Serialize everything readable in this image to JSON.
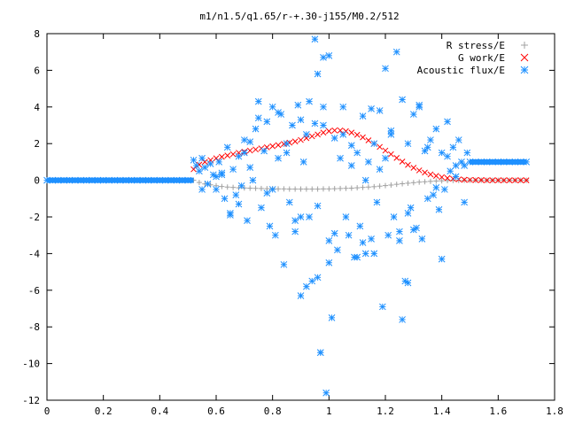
{
  "chart_data": {
    "type": "scatter",
    "title": "m1/n1.5/q1.65/r-+.30-j155/M0.2/512",
    "xlim": [
      0,
      1.8
    ],
    "ylim": [
      -12,
      8
    ],
    "x_ticks": [
      0,
      0.2,
      0.4,
      0.6,
      0.8,
      1,
      1.2,
      1.4,
      1.6,
      1.8
    ],
    "y_ticks": [
      -12,
      -10,
      -8,
      -6,
      -4,
      -2,
      0,
      2,
      4,
      6,
      8
    ],
    "grid": false,
    "legend_position": "top-right",
    "series": [
      {
        "name": "R stress/E",
        "marker": "plus",
        "color": "#a0a0a0",
        "x": [
          0.52,
          0.54,
          0.56,
          0.58,
          0.6,
          0.62,
          0.64,
          0.66,
          0.68,
          0.7,
          0.72,
          0.74,
          0.76,
          0.78,
          0.8,
          0.82,
          0.84,
          0.86,
          0.88,
          0.9,
          0.92,
          0.94,
          0.96,
          0.98,
          1.0,
          1.02,
          1.04,
          1.06,
          1.08,
          1.1,
          1.12,
          1.14,
          1.16,
          1.18,
          1.2,
          1.22,
          1.24,
          1.26,
          1.28,
          1.3,
          1.32,
          1.34,
          1.36,
          1.38,
          1.4,
          1.42,
          1.44,
          1.46,
          1.48,
          1.5,
          1.52,
          1.54,
          1.56,
          1.58,
          1.6,
          1.62,
          1.64,
          1.66,
          1.68,
          1.7
        ],
        "y": [
          0.0,
          -0.12,
          -0.2,
          -0.25,
          -0.3,
          -0.34,
          -0.37,
          -0.39,
          -0.41,
          -0.42,
          -0.43,
          -0.44,
          -0.45,
          -0.46,
          -0.46,
          -0.47,
          -0.47,
          -0.48,
          -0.48,
          -0.48,
          -0.48,
          -0.48,
          -0.48,
          -0.47,
          -0.47,
          -0.46,
          -0.45,
          -0.44,
          -0.43,
          -0.41,
          -0.39,
          -0.37,
          -0.35,
          -0.32,
          -0.29,
          -0.26,
          -0.22,
          -0.19,
          -0.16,
          -0.13,
          -0.1,
          -0.08,
          -0.06,
          -0.04,
          -0.03,
          -0.02,
          -0.01,
          -0.01,
          0.0,
          0.0,
          0.0,
          0.0,
          0.0,
          0.0,
          0.0,
          0.0,
          0.0,
          0.0,
          0.0,
          0.0
        ]
      },
      {
        "name": "G work/E",
        "marker": "cross",
        "color": "#ff0000",
        "x": [
          0.52,
          0.54,
          0.56,
          0.58,
          0.6,
          0.62,
          0.64,
          0.66,
          0.68,
          0.7,
          0.72,
          0.74,
          0.76,
          0.78,
          0.8,
          0.82,
          0.84,
          0.86,
          0.88,
          0.9,
          0.92,
          0.94,
          0.96,
          0.98,
          1.0,
          1.02,
          1.04,
          1.06,
          1.08,
          1.1,
          1.12,
          1.14,
          1.16,
          1.18,
          1.2,
          1.22,
          1.24,
          1.26,
          1.28,
          1.3,
          1.32,
          1.34,
          1.36,
          1.38,
          1.4,
          1.42,
          1.44,
          1.46,
          1.48,
          1.5,
          1.52,
          1.54,
          1.56,
          1.58,
          1.6,
          1.62,
          1.64,
          1.66,
          1.68,
          1.7
        ],
        "y": [
          0.6,
          0.85,
          1.0,
          1.1,
          1.2,
          1.28,
          1.35,
          1.42,
          1.5,
          1.56,
          1.62,
          1.68,
          1.74,
          1.8,
          1.86,
          1.92,
          1.98,
          2.05,
          2.12,
          2.2,
          2.3,
          2.4,
          2.5,
          2.6,
          2.68,
          2.72,
          2.72,
          2.68,
          2.6,
          2.48,
          2.34,
          2.18,
          2.0,
          1.82,
          1.62,
          1.42,
          1.22,
          1.02,
          0.84,
          0.68,
          0.54,
          0.42,
          0.32,
          0.24,
          0.17,
          0.12,
          0.08,
          0.05,
          0.03,
          0.02,
          0.01,
          0.01,
          0.0,
          0.0,
          0.0,
          0.0,
          0.0,
          0.0,
          0.0,
          0.0
        ]
      },
      {
        "name": "Acoustic flux/E",
        "marker": "star",
        "color": "#1e90ff",
        "x": [
          0.0,
          0.02,
          0.04,
          0.06,
          0.08,
          0.1,
          0.12,
          0.14,
          0.16,
          0.18,
          0.2,
          0.22,
          0.24,
          0.26,
          0.28,
          0.3,
          0.32,
          0.34,
          0.36,
          0.38,
          0.4,
          0.42,
          0.44,
          0.46,
          0.48,
          0.5,
          0.52,
          0.53,
          0.54,
          0.55,
          0.56,
          0.57,
          0.58,
          0.59,
          0.6,
          0.61,
          0.62,
          0.63,
          0.64,
          0.65,
          0.66,
          0.67,
          0.68,
          0.69,
          0.7,
          0.71,
          0.72,
          0.73,
          0.74,
          0.75,
          0.76,
          0.77,
          0.78,
          0.79,
          0.8,
          0.81,
          0.82,
          0.83,
          0.84,
          0.85,
          0.86,
          0.87,
          0.88,
          0.89,
          0.9,
          0.91,
          0.92,
          0.93,
          0.94,
          0.95,
          0.96,
          0.97,
          0.98,
          0.99,
          1.0,
          1.01,
          1.02,
          1.03,
          1.04,
          1.05,
          1.06,
          1.07,
          1.08,
          1.09,
          1.1,
          1.11,
          1.12,
          1.13,
          1.14,
          1.15,
          1.16,
          1.17,
          1.18,
          1.19,
          1.2,
          1.21,
          1.22,
          1.23,
          1.24,
          1.25,
          1.26,
          1.27,
          1.28,
          1.29,
          1.3,
          1.31,
          1.32,
          1.33,
          1.34,
          1.35,
          1.36,
          1.37,
          1.38,
          1.39,
          1.4,
          1.41,
          1.42,
          1.43,
          1.44,
          1.45,
          1.46,
          1.47,
          1.48,
          1.49,
          1.5,
          1.52,
          1.54,
          1.56,
          1.58,
          1.6,
          1.62,
          1.64,
          1.66,
          1.68,
          1.7,
          0.55,
          0.6,
          0.65,
          0.7,
          0.75,
          0.8,
          0.85,
          0.9,
          0.95,
          1.0,
          1.05,
          1.1,
          1.15,
          1.2,
          1.25,
          1.3,
          1.35,
          1.4,
          1.45,
          0.62,
          0.68,
          0.72,
          0.78,
          0.82,
          0.88,
          0.92,
          0.96,
          0.98,
          1.02,
          1.08,
          1.12,
          1.18,
          1.22,
          1.28,
          1.32,
          1.38,
          1.42,
          1.48,
          0.96,
          0.97,
          0.98,
          1.0,
          0.93,
          0.9,
          1.26,
          1.28,
          1.13,
          1.16
        ],
        "y": [
          0,
          0,
          0,
          0,
          0,
          0,
          0,
          0,
          0,
          0,
          0,
          0,
          0,
          0,
          0,
          0,
          0,
          0,
          0,
          0,
          0,
          0,
          0,
          0,
          0,
          0,
          1.1,
          0.8,
          0.5,
          1.2,
          0.7,
          -0.2,
          0.9,
          0.3,
          -0.5,
          1.0,
          0.4,
          -1.0,
          1.8,
          -1.8,
          0.6,
          -0.8,
          1.3,
          -0.3,
          2.2,
          -2.2,
          0.7,
          0.0,
          2.8,
          4.3,
          -1.5,
          1.6,
          3.2,
          -2.5,
          4.0,
          -3.0,
          1.2,
          3.6,
          -4.6,
          2.0,
          -1.2,
          3.0,
          -2.8,
          4.1,
          -6.3,
          1.0,
          -5.8,
          4.3,
          -5.5,
          7.7,
          5.8,
          -9.4,
          3.0,
          -11.6,
          6.8,
          -7.5,
          2.3,
          -3.8,
          1.2,
          4.0,
          -2.0,
          -3.0,
          0.8,
          -4.2,
          1.5,
          -2.5,
          3.5,
          -4.0,
          1.0,
          -3.2,
          2.0,
          -1.2,
          3.8,
          -6.9,
          6.1,
          -3.0,
          2.5,
          -2.0,
          7.0,
          -2.8,
          4.4,
          -5.5,
          2.0,
          -1.5,
          3.6,
          -2.6,
          4.0,
          -3.2,
          1.6,
          -1.0,
          2.2,
          -0.8,
          2.8,
          -1.6,
          1.5,
          -0.5,
          3.2,
          0.5,
          1.8,
          0.2,
          2.2,
          1.0,
          0.8,
          1.5,
          1.0,
          1.0,
          1.0,
          1.0,
          1.0,
          1.0,
          1.0,
          1.0,
          1.0,
          1.0,
          1.0,
          -0.5,
          0.2,
          -1.9,
          1.5,
          3.4,
          -0.5,
          1.5,
          -2.0,
          3.1,
          -4.5,
          2.5,
          -4.2,
          3.9,
          1.2,
          -3.3,
          -2.7,
          1.8,
          -4.3,
          0.8,
          0.3,
          -1.3,
          2.1,
          -0.7,
          3.7,
          -2.2,
          2.5,
          -1.4,
          4.0,
          -2.9,
          1.9,
          -3.4,
          0.6,
          2.7,
          -1.8,
          4.1,
          -0.4,
          1.3,
          -1.2,
          -5.3,
          -9.4,
          6.7,
          -3.3,
          -2.0,
          3.3,
          -7.6,
          -5.6,
          0.0,
          -4.0
        ]
      }
    ]
  }
}
